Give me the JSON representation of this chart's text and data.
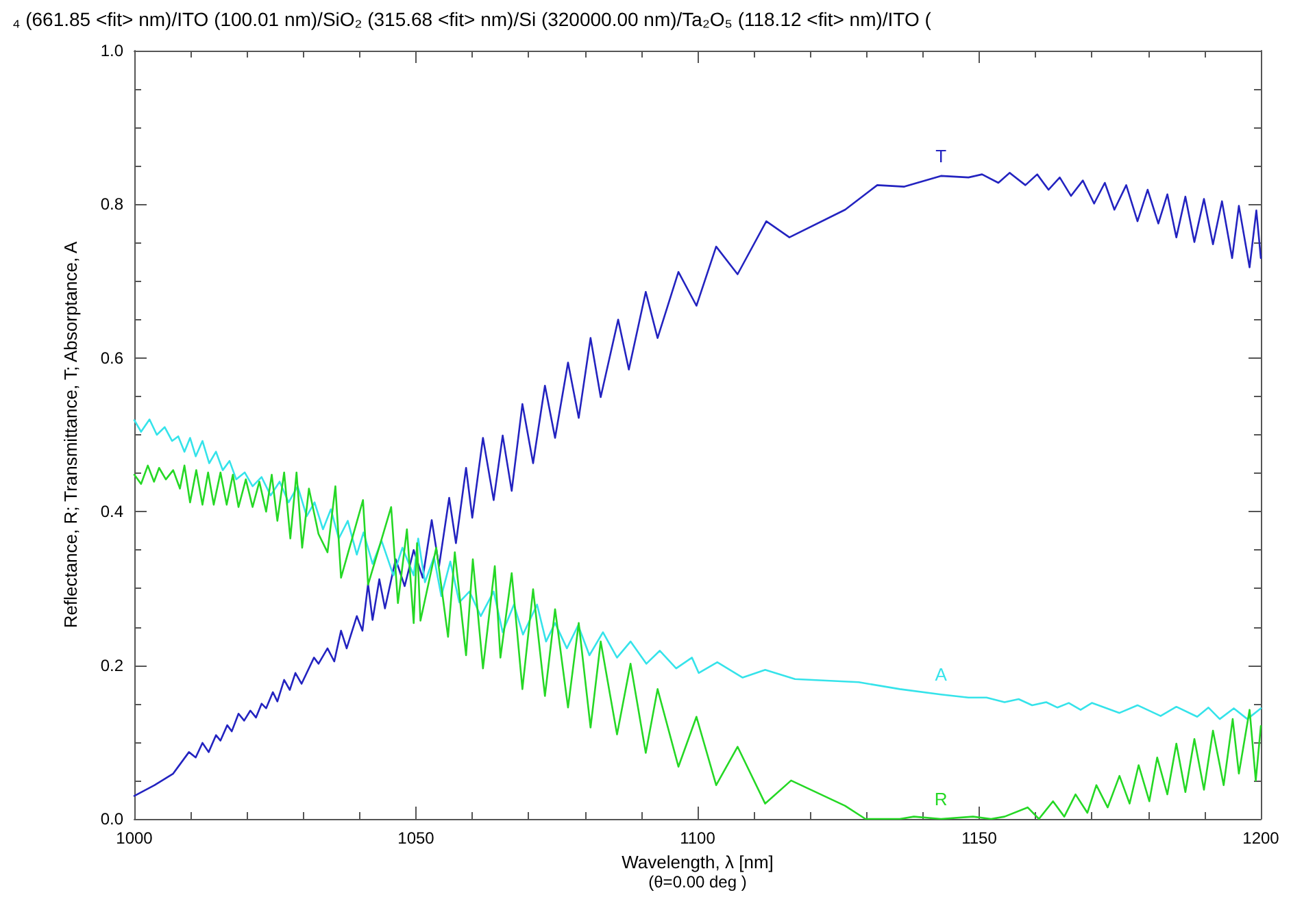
{
  "chart_data": {
    "type": "line",
    "title": "₄ (661.85 <fit> nm)/ITO (100.01 nm)/SiO₂ (315.68 <fit> nm)/Si (320000.00 nm)/Ta₂O₅ (118.12 <fit> nm)/ITO (",
    "xlabel": "Wavelength, λ [nm]",
    "ylabel": "Reflectance, R; Transmittance, T; Absorptance, A",
    "annotations": [
      "(θ=0.00 deg )"
    ],
    "xlim": [
      1000,
      1200
    ],
    "xticks": [
      1000,
      1050,
      1100,
      1150,
      1200
    ],
    "ylim": [
      0,
      1
    ],
    "yticks": [
      {
        "value": 0,
        "label": "0.0"
      },
      {
        "value": 0.2,
        "label": "0.2"
      },
      {
        "value": 0.4,
        "label": "0.4"
      },
      {
        "value": 0.6,
        "label": "0.6"
      },
      {
        "value": 0.8,
        "label": "0.8"
      },
      {
        "value": 1,
        "label": "1.0"
      }
    ],
    "grid": false,
    "legend": false,
    "marker": "none",
    "line_style": "solid",
    "series": [
      {
        "name": "T",
        "color": "#2323c0",
        "x": [
          1000,
          1003.6,
          1006.9,
          1009.7,
          1010.9,
          1012.1,
          1013.2,
          1014.5,
          1015.3,
          1016.5,
          1017.3,
          1018.5,
          1019.5,
          1020.6,
          1021.6,
          1022.6,
          1023.4,
          1024.6,
          1025.4,
          1026.6,
          1027.6,
          1028.6,
          1029.7,
          1031.9,
          1032.7,
          1034.3,
          1035.5,
          1036.7,
          1037.7,
          1039.5,
          1040.5,
          1041.5,
          1042.3,
          1043.5,
          1044.5,
          1046.4,
          1048.0,
          1049.6,
          1051.2,
          1052.8,
          1054.1,
          1055.9,
          1057.1,
          1058.9,
          1060.0,
          1061.9,
          1063.8,
          1065.4,
          1067.0,
          1068.9,
          1070.8,
          1072.9,
          1074.7,
          1077.0,
          1078.9,
          1081.0,
          1082.8,
          1085.9,
          1087.8,
          1090.8,
          1092.9,
          1096.6,
          1099.8,
          1103.3,
          1107.1,
          1112.2,
          1116.3,
          1126.2,
          1131.9,
          1136.7,
          1143.2,
          1148.1,
          1150.5,
          1153.4,
          1155.4,
          1158.2,
          1160.3,
          1162.3,
          1164.3,
          1166.3,
          1168.4,
          1170.4,
          1172.3,
          1174.0,
          1176.1,
          1178.1,
          1179.9,
          1181.8,
          1183.4,
          1185.0,
          1186.6,
          1188.2,
          1189.9,
          1191.5,
          1193.1,
          1194.9,
          1196.1,
          1198.0,
          1199.2,
          1200
        ],
        "values": [
          0.03,
          0.044,
          0.059,
          0.087,
          0.08,
          0.099,
          0.087,
          0.109,
          0.102,
          0.122,
          0.114,
          0.137,
          0.128,
          0.141,
          0.132,
          0.15,
          0.144,
          0.165,
          0.153,
          0.181,
          0.168,
          0.19,
          0.176,
          0.21,
          0.202,
          0.222,
          0.205,
          0.245,
          0.222,
          0.264,
          0.245,
          0.306,
          0.259,
          0.312,
          0.274,
          0.338,
          0.303,
          0.35,
          0.314,
          0.389,
          0.329,
          0.418,
          0.359,
          0.457,
          0.392,
          0.496,
          0.415,
          0.499,
          0.427,
          0.54,
          0.463,
          0.564,
          0.496,
          0.594,
          0.522,
          0.626,
          0.549,
          0.65,
          0.585,
          0.686,
          0.626,
          0.712,
          0.668,
          0.745,
          0.709,
          0.778,
          0.757,
          0.793,
          0.825,
          0.823,
          0.837,
          0.835,
          0.839,
          0.828,
          0.841,
          0.825,
          0.839,
          0.819,
          0.835,
          0.811,
          0.831,
          0.801,
          0.828,
          0.793,
          0.825,
          0.778,
          0.819,
          0.775,
          0.813,
          0.757,
          0.81,
          0.751,
          0.807,
          0.748,
          0.804,
          0.73,
          0.798,
          0.718,
          0.792,
          0.73
        ]
      },
      {
        "name": "A",
        "color": "#35e3ea",
        "x": [
          1000,
          1001.2,
          1002.7,
          1004.0,
          1005.4,
          1006.7,
          1007.8,
          1008.9,
          1009.9,
          1010.9,
          1012.1,
          1013.3,
          1014.5,
          1015.7,
          1016.9,
          1018.1,
          1019.6,
          1021.0,
          1022.6,
          1024.2,
          1025.8,
          1027.4,
          1029.0,
          1030.6,
          1032.0,
          1033.5,
          1034.9,
          1036.3,
          1037.9,
          1039.5,
          1040.7,
          1042.3,
          1043.9,
          1046.0,
          1047.6,
          1049.6,
          1050.4,
          1051.6,
          1053.2,
          1054.5,
          1056.1,
          1057.7,
          1059.5,
          1061.5,
          1063.8,
          1065.4,
          1067.4,
          1069.0,
          1071.5,
          1073.1,
          1074.7,
          1076.8,
          1078.8,
          1080.8,
          1083.2,
          1085.7,
          1088.1,
          1090.9,
          1093.3,
          1096.2,
          1099.0,
          1100.2,
          1103.5,
          1108.0,
          1112.0,
          1117.3,
          1128.6,
          1135.9,
          1143.2,
          1148.1,
          1151.3,
          1154.5,
          1157.0,
          1159.4,
          1161.9,
          1163.9,
          1165.9,
          1168.0,
          1170.0,
          1174.9,
          1178.1,
          1182.2,
          1185.0,
          1188.7,
          1190.7,
          1192.7,
          1195.2,
          1197.6,
          1200
        ],
        "values": [
          0.519,
          0.504,
          0.52,
          0.5,
          0.51,
          0.492,
          0.498,
          0.478,
          0.496,
          0.472,
          0.492,
          0.463,
          0.478,
          0.454,
          0.466,
          0.442,
          0.451,
          0.433,
          0.445,
          0.421,
          0.439,
          0.412,
          0.433,
          0.394,
          0.412,
          0.377,
          0.403,
          0.365,
          0.388,
          0.344,
          0.373,
          0.332,
          0.362,
          0.317,
          0.353,
          0.317,
          0.365,
          0.308,
          0.341,
          0.29,
          0.335,
          0.282,
          0.296,
          0.264,
          0.296,
          0.243,
          0.279,
          0.24,
          0.279,
          0.231,
          0.255,
          0.222,
          0.252,
          0.213,
          0.243,
          0.21,
          0.231,
          0.202,
          0.219,
          0.196,
          0.21,
          0.19,
          0.204,
          0.184,
          0.194,
          0.182,
          0.178,
          0.169,
          0.162,
          0.158,
          0.158,
          0.152,
          0.156,
          0.148,
          0.152,
          0.145,
          0.151,
          0.142,
          0.151,
          0.138,
          0.148,
          0.134,
          0.146,
          0.133,
          0.145,
          0.13,
          0.144,
          0.13,
          0.144
        ]
      },
      {
        "name": "R",
        "color": "#25d825",
        "x": [
          1000,
          1001.2,
          1002.4,
          1003.5,
          1004.4,
          1005.6,
          1006.9,
          1008.1,
          1008.9,
          1009.9,
          1011.0,
          1012.1,
          1013.1,
          1014.1,
          1015.3,
          1016.4,
          1017.5,
          1018.5,
          1019.8,
          1021.0,
          1022.2,
          1023.4,
          1024.4,
          1025.4,
          1026.6,
          1027.7,
          1028.8,
          1029.8,
          1031.0,
          1032.7,
          1034.3,
          1035.7,
          1036.7,
          1040.6,
          1041.5,
          1045.6,
          1046.8,
          1048.4,
          1049.6,
          1050.2,
          1050.8,
          1053.6,
          1055.7,
          1056.9,
          1058.9,
          1060.1,
          1061.9,
          1064.0,
          1065.0,
          1067.0,
          1068.9,
          1070.8,
          1072.9,
          1074.7,
          1077.0,
          1078.9,
          1081.0,
          1082.8,
          1085.7,
          1088.1,
          1090.8,
          1092.9,
          1096.6,
          1099.8,
          1103.3,
          1107.1,
          1112.0,
          1116.6,
          1126.2,
          1129.8,
          1135.9,
          1138.4,
          1143.2,
          1148.9,
          1152.1,
          1154.5,
          1158.6,
          1160.6,
          1163.1,
          1165.1,
          1167.1,
          1169.2,
          1170.8,
          1172.8,
          1174.9,
          1176.7,
          1178.3,
          1180.2,
          1181.6,
          1183.4,
          1185.0,
          1186.6,
          1188.2,
          1189.9,
          1191.5,
          1193.4,
          1195.0,
          1196.1,
          1198.0,
          1199.1,
          1200
        ],
        "values": [
          0.448,
          0.436,
          0.46,
          0.439,
          0.457,
          0.442,
          0.454,
          0.43,
          0.46,
          0.412,
          0.454,
          0.409,
          0.451,
          0.409,
          0.451,
          0.409,
          0.448,
          0.406,
          0.442,
          0.406,
          0.439,
          0.4,
          0.448,
          0.388,
          0.451,
          0.365,
          0.451,
          0.353,
          0.43,
          0.371,
          0.347,
          0.433,
          0.314,
          0.415,
          0.305,
          0.406,
          0.281,
          0.377,
          0.255,
          0.359,
          0.258,
          0.353,
          0.237,
          0.347,
          0.213,
          0.338,
          0.196,
          0.329,
          0.21,
          0.32,
          0.169,
          0.299,
          0.16,
          0.273,
          0.145,
          0.255,
          0.119,
          0.231,
          0.11,
          0.202,
          0.086,
          0.169,
          0.068,
          0.133,
          0.044,
          0.094,
          0.02,
          0.05,
          0.017,
          0,
          0,
          0.003,
          0,
          0.003,
          0,
          0.003,
          0.015,
          0,
          0.023,
          0.003,
          0.032,
          0.008,
          0.044,
          0.015,
          0.056,
          0.02,
          0.07,
          0.023,
          0.08,
          0.032,
          0.098,
          0.035,
          0.104,
          0.038,
          0.115,
          0.044,
          0.13,
          0.059,
          0.142,
          0.05,
          0.121
        ]
      }
    ]
  }
}
